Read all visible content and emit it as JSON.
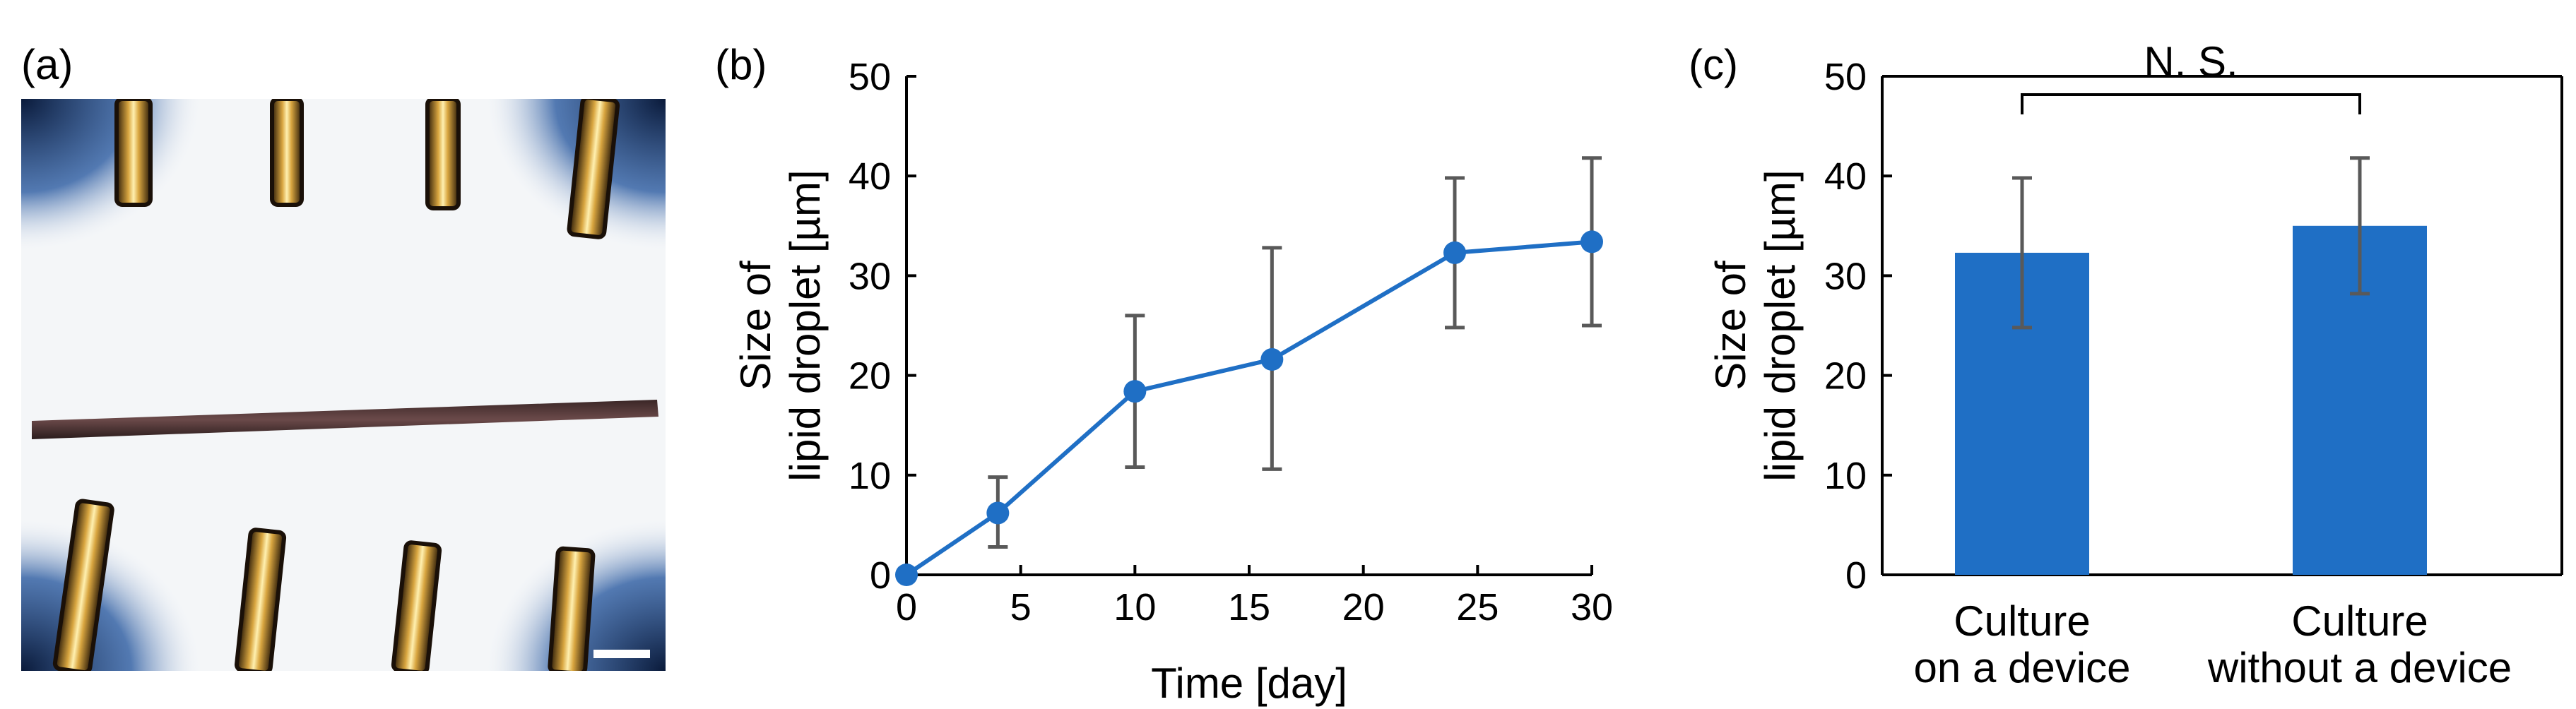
{
  "panels": {
    "a": {
      "label": "(a)"
    },
    "b": {
      "label": "(b)"
    },
    "c": {
      "label": "(c)"
    }
  },
  "colors": {
    "series": "#1f6fc5",
    "errorbar": "#595959"
  },
  "chart_data": [
    {
      "type": "line",
      "panel": "b",
      "xlabel": "Time [day]",
      "ylabel": [
        "Size of",
        "lipid droplet [µm]"
      ],
      "xlim": [
        0,
        30
      ],
      "ylim": [
        0,
        50
      ],
      "xticks": [
        0,
        5,
        10,
        15,
        20,
        25,
        30
      ],
      "yticks": [
        0,
        10,
        20,
        30,
        40,
        50
      ],
      "x": [
        0,
        4,
        10,
        16,
        24,
        30
      ],
      "y": [
        0,
        6.2,
        18.4,
        21.6,
        32.3,
        33.4
      ],
      "err_low": [
        0,
        2.8,
        10.8,
        10.6,
        24.8,
        25.0
      ],
      "err_high": [
        0,
        9.8,
        26.0,
        32.8,
        39.8,
        41.8
      ]
    },
    {
      "type": "bar",
      "panel": "c",
      "ylabel": [
        "Size of",
        "lipid droplet [µm]"
      ],
      "ylim": [
        0,
        50
      ],
      "yticks": [
        0,
        10,
        20,
        30,
        40,
        50
      ],
      "categories": [
        [
          "Culture",
          "on a device"
        ],
        [
          "Culture",
          "without a device"
        ]
      ],
      "values": [
        32.3,
        35.0
      ],
      "err_low": [
        24.8,
        28.2
      ],
      "err_high": [
        39.8,
        41.8
      ],
      "significance": "N. S."
    }
  ]
}
